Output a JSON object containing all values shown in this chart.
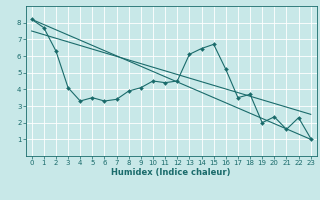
{
  "xlabel": "Humidex (Indice chaleur)",
  "background_color": "#c8e8e8",
  "grid_color": "#d0e8e0",
  "line_color": "#1a6b6b",
  "xlim": [
    -0.5,
    23.5
  ],
  "ylim": [
    0,
    9
  ],
  "x_ticks": [
    0,
    1,
    2,
    3,
    4,
    5,
    6,
    7,
    8,
    9,
    10,
    11,
    12,
    13,
    14,
    15,
    16,
    17,
    18,
    19,
    20,
    21,
    22,
    23
  ],
  "y_ticks": [
    1,
    2,
    3,
    4,
    5,
    6,
    7,
    8
  ],
  "line1_x": [
    0,
    1,
    2,
    3,
    4,
    5,
    6,
    7,
    8,
    9,
    10,
    11,
    12,
    13,
    14,
    15,
    16,
    17,
    18,
    19,
    20,
    21,
    22,
    23
  ],
  "line1_y": [
    8.2,
    7.7,
    6.3,
    4.1,
    3.3,
    3.5,
    3.3,
    3.4,
    3.9,
    4.1,
    4.5,
    4.4,
    4.5,
    6.1,
    6.45,
    6.7,
    5.2,
    3.5,
    3.7,
    2.0,
    2.35,
    1.6,
    2.3,
    1.05
  ],
  "line2_x": [
    0,
    23
  ],
  "line2_y": [
    8.2,
    1.0
  ],
  "line3_x": [
    0,
    23
  ],
  "line3_y": [
    7.5,
    2.5
  ],
  "marker_size": 2.0,
  "line_width": 0.8,
  "tick_fontsize": 5.0,
  "xlabel_fontsize": 6.0
}
